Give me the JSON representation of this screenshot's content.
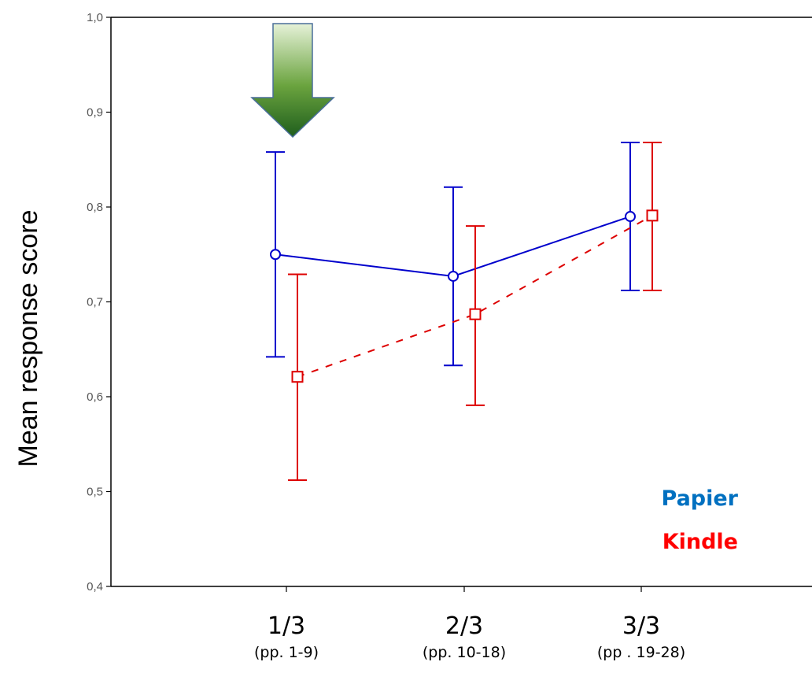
{
  "chart_data": {
    "type": "line",
    "title": "",
    "xlabel": "",
    "ylabel": "Mean response score",
    "ylim": [
      0.4,
      1.0
    ],
    "yticks": [
      "0,4",
      "0,5",
      "0,6",
      "0,7",
      "0,8",
      "0,9",
      "1,0"
    ],
    "categories": [
      {
        "label": "1/3",
        "sub": "(pp. 1-9)"
      },
      {
        "label": "2/3",
        "sub": "(pp. 10-18)"
      },
      {
        "label": "3/3",
        "sub": "(pp . 19-28)"
      }
    ],
    "series": [
      {
        "name": "Papier",
        "color": "#0000cc",
        "legend_color": "#0070c0",
        "line_style": "solid",
        "marker": "circle",
        "values": [
          0.75,
          0.727,
          0.79
        ],
        "error_low": [
          0.642,
          0.633,
          0.712
        ],
        "error_high": [
          0.858,
          0.821,
          0.868
        ]
      },
      {
        "name": "Kindle",
        "color": "#dd0000",
        "legend_color": "#ff0000",
        "line_style": "dashed",
        "marker": "square",
        "values": [
          0.621,
          0.687,
          0.791
        ],
        "error_low": [
          0.512,
          0.591,
          0.712
        ],
        "error_high": [
          0.729,
          0.78,
          0.868
        ]
      }
    ],
    "annotation": {
      "type": "arrow",
      "direction": "down",
      "category_index": 0,
      "color": "#2e7d32"
    },
    "grid": false,
    "legend_position": "bottom-right"
  }
}
